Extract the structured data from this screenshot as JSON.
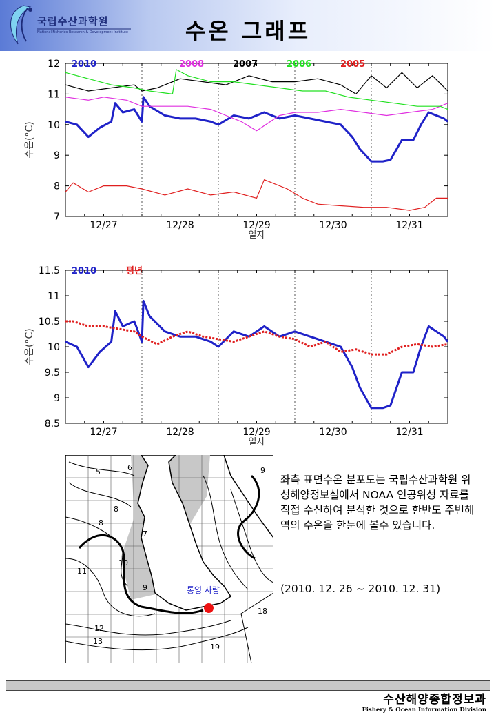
{
  "header": {
    "org_name": "국립수산과학원",
    "org_sub": "National Fisheries Research & Development Institute",
    "title": "수온 그래프"
  },
  "chart_data": [
    {
      "type": "line",
      "ylabel": "수온(°C)",
      "xlabel": "일자",
      "ylim": [
        7,
        12
      ],
      "yticks": [
        7,
        8,
        9,
        10,
        11,
        12
      ],
      "xlim": [
        0,
        5
      ],
      "categories": [
        "12/27",
        "12/28",
        "12/29",
        "12/30",
        "12/31"
      ],
      "series": [
        {
          "name": "2010",
          "color": "#1f22c8",
          "width": 3,
          "x": [
            0,
            0.15,
            0.3,
            0.45,
            0.6,
            0.65,
            0.75,
            0.9,
            1.0,
            1.02,
            1.1,
            1.3,
            1.5,
            1.7,
            1.9,
            2.0,
            2.2,
            2.4,
            2.6,
            2.8,
            3.0,
            3.2,
            3.4,
            3.6,
            3.75,
            3.85,
            4.0,
            4.15,
            4.25,
            4.4,
            4.55,
            4.65,
            4.75,
            4.85,
            4.95,
            5.0
          ],
          "y": [
            10.1,
            10.0,
            9.6,
            9.9,
            10.1,
            10.7,
            10.4,
            10.5,
            10.1,
            10.9,
            10.6,
            10.3,
            10.2,
            10.2,
            10.1,
            10.0,
            10.3,
            10.2,
            10.4,
            10.2,
            10.3,
            10.2,
            10.1,
            10.0,
            9.6,
            9.2,
            8.8,
            8.8,
            8.85,
            9.5,
            9.5,
            10.0,
            10.4,
            10.3,
            10.2,
            10.1
          ]
        },
        {
          "name": "2008",
          "color": "#e030e0",
          "width": 1.2,
          "x": [
            0,
            0.3,
            0.5,
            0.8,
            1.0,
            1.3,
            1.6,
            1.9,
            2.1,
            2.3,
            2.5,
            2.8,
            3.0,
            3.3,
            3.6,
            3.9,
            4.2,
            4.5,
            4.8,
            5.0
          ],
          "y": [
            10.9,
            10.8,
            10.9,
            10.8,
            10.6,
            10.6,
            10.6,
            10.5,
            10.3,
            10.1,
            9.8,
            10.3,
            10.4,
            10.4,
            10.5,
            10.4,
            10.3,
            10.4,
            10.5,
            10.7
          ]
        },
        {
          "name": "2007",
          "color": "#000000",
          "width": 1.2,
          "x": [
            0,
            0.3,
            0.6,
            0.9,
            1.0,
            1.2,
            1.5,
            1.8,
            2.1,
            2.4,
            2.7,
            3.0,
            3.3,
            3.6,
            3.8,
            4.0,
            4.2,
            4.4,
            4.6,
            4.8,
            5.0
          ],
          "y": [
            11.3,
            11.1,
            11.2,
            11.3,
            11.1,
            11.2,
            11.5,
            11.4,
            11.3,
            11.6,
            11.4,
            11.4,
            11.5,
            11.3,
            11.0,
            11.6,
            11.2,
            11.7,
            11.2,
            11.6,
            11.1
          ]
        },
        {
          "name": "2006",
          "color": "#20e020",
          "width": 1.2,
          "x": [
            0,
            0.3,
            0.6,
            0.9,
            1.1,
            1.4,
            1.45,
            1.6,
            1.9,
            2.2,
            2.5,
            2.8,
            3.1,
            3.4,
            3.7,
            4.0,
            4.3,
            4.6,
            4.9,
            5.0
          ],
          "y": [
            11.7,
            11.5,
            11.3,
            11.2,
            11.1,
            11.0,
            11.8,
            11.6,
            11.4,
            11.4,
            11.3,
            11.2,
            11.1,
            11.1,
            10.9,
            10.8,
            10.7,
            10.6,
            10.6,
            10.5
          ]
        },
        {
          "name": "2005",
          "color": "#e02020",
          "width": 1.2,
          "x": [
            0,
            0.1,
            0.3,
            0.5,
            0.8,
            1.0,
            1.3,
            1.6,
            1.9,
            2.2,
            2.5,
            2.6,
            2.9,
            3.1,
            3.3,
            3.6,
            3.9,
            4.2,
            4.5,
            4.7,
            4.85,
            5.0
          ],
          "y": [
            7.8,
            8.1,
            7.8,
            8.0,
            8.0,
            7.9,
            7.7,
            7.9,
            7.7,
            7.8,
            7.6,
            8.2,
            7.9,
            7.6,
            7.4,
            7.35,
            7.3,
            7.3,
            7.2,
            7.3,
            7.6,
            7.6
          ]
        }
      ]
    },
    {
      "type": "line",
      "ylabel": "수온(°C)",
      "xlabel": "일자",
      "ylim": [
        8.5,
        11.5
      ],
      "yticks": [
        8.5,
        9,
        9.5,
        10,
        10.5,
        11,
        11.5
      ],
      "xlim": [
        0,
        5
      ],
      "categories": [
        "12/27",
        "12/28",
        "12/29",
        "12/30",
        "12/31"
      ],
      "series": [
        {
          "name": "2010",
          "color": "#1f22c8",
          "width": 3,
          "x": [
            0,
            0.15,
            0.3,
            0.45,
            0.6,
            0.65,
            0.75,
            0.9,
            1.0,
            1.02,
            1.1,
            1.3,
            1.5,
            1.7,
            1.9,
            2.0,
            2.2,
            2.4,
            2.6,
            2.8,
            3.0,
            3.2,
            3.4,
            3.6,
            3.75,
            3.85,
            4.0,
            4.15,
            4.25,
            4.4,
            4.55,
            4.65,
            4.75,
            4.85,
            4.95,
            5.0
          ],
          "y": [
            10.1,
            10.0,
            9.6,
            9.9,
            10.1,
            10.7,
            10.4,
            10.5,
            10.1,
            10.9,
            10.6,
            10.3,
            10.2,
            10.2,
            10.1,
            10.0,
            10.3,
            10.2,
            10.4,
            10.2,
            10.3,
            10.2,
            10.1,
            10.0,
            9.6,
            9.2,
            8.8,
            8.8,
            8.85,
            9.5,
            9.5,
            10.0,
            10.4,
            10.3,
            10.2,
            10.1
          ]
        },
        {
          "name": "평년",
          "color": "#e02020",
          "width": 3,
          "dashed": true,
          "x": [
            0,
            0.1,
            0.3,
            0.5,
            0.7,
            0.9,
            1.0,
            1.2,
            1.4,
            1.6,
            1.8,
            2.0,
            2.2,
            2.4,
            2.6,
            2.8,
            3.0,
            3.2,
            3.4,
            3.6,
            3.8,
            4.0,
            4.2,
            4.4,
            4.6,
            4.8,
            5.0
          ],
          "y": [
            10.5,
            10.5,
            10.4,
            10.4,
            10.35,
            10.3,
            10.2,
            10.05,
            10.2,
            10.3,
            10.2,
            10.15,
            10.1,
            10.2,
            10.3,
            10.2,
            10.15,
            10.0,
            10.1,
            9.9,
            9.95,
            9.85,
            9.85,
            10.0,
            10.05,
            10.0,
            10.05
          ]
        }
      ]
    }
  ],
  "map": {
    "station_label": "통영 사량",
    "contour_labels": [
      "5",
      "6",
      "7",
      "8",
      "8",
      "9",
      "9",
      "10",
      "11",
      "12",
      "13",
      "18",
      "19"
    ]
  },
  "description": {
    "text": "좌측 표면수온 분포도는 국립수산과학원 위성해양정보실에서 NOAA 인공위성 자료를 직접 수신하여 분석한 것으로 한반도 주변해역의 수온을 한눈에 볼수 있습니다.",
    "period": "(2010. 12. 26 ~ 2010. 12. 31)"
  },
  "footer": {
    "org_ko": "수산해양종합정보과",
    "org_en": "Fishery & Ocean Information Division"
  }
}
